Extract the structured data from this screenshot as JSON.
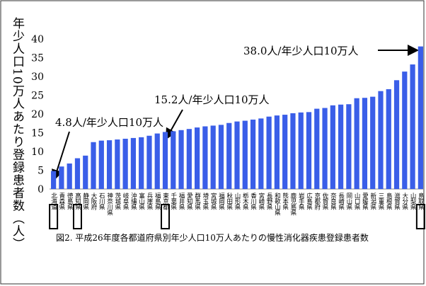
{
  "chart_data": {
    "type": "bar",
    "y_label": "年少人口10万人あたり登録患者数（人）",
    "caption": "図2. 平成26年度各都道府県別年少人口10万人あたりの慢性消化器疾患登録患者数",
    "annotations": [
      "4.8人/年少人口10万人",
      "15.2人/年少人口10万人",
      "38.0人/年少人口10万人"
    ],
    "categories": [
      "北海道",
      "青森県",
      "徳島県",
      "高知県",
      "静岡県",
      "大阪府",
      "石川県",
      "神奈川県",
      "茨城県",
      "岐阜県",
      "沖縄県",
      "富山県",
      "兵庫県",
      "福島県",
      "東京都",
      "千葉県",
      "福井県",
      "愛知県",
      "群馬県",
      "埼玉県",
      "宮城県",
      "福岡県",
      "秋田県",
      "山形県",
      "栃木県",
      "香川県",
      "宮崎県",
      "長野県",
      "和歌山県",
      "熊本県",
      "鹿児島県",
      "岩手県",
      "広島県",
      "京都府",
      "佐賀県",
      "奈良県",
      "長崎県",
      "岡山県",
      "山口県",
      "愛媛県",
      "新潟県",
      "三重県",
      "島根県",
      "滋賀県",
      "大分県",
      "山梨県",
      "鳥取県"
    ],
    "values": [
      4.8,
      6.0,
      6.8,
      8.2,
      8.9,
      12.5,
      12.9,
      13.0,
      13.2,
      13.4,
      13.6,
      13.8,
      14.2,
      14.8,
      15.2,
      15.4,
      15.7,
      16.0,
      16.4,
      16.7,
      16.9,
      17.1,
      17.6,
      18.0,
      18.2,
      18.5,
      18.8,
      19.3,
      19.6,
      19.8,
      20.2,
      20.4,
      20.5,
      21.4,
      21.6,
      22.3,
      22.5,
      22.6,
      24.2,
      24.3,
      24.6,
      26.1,
      26.6,
      29.0,
      31.3,
      33.2,
      38.0
    ],
    "color": "#3a5ee8",
    "boxed_categories": [
      0,
      3,
      14,
      46
    ],
    "ylim": [
      0,
      40
    ],
    "yticks": [
      0,
      5,
      10,
      15,
      20,
      25,
      30,
      35,
      40
    ],
    "grid": false
  }
}
